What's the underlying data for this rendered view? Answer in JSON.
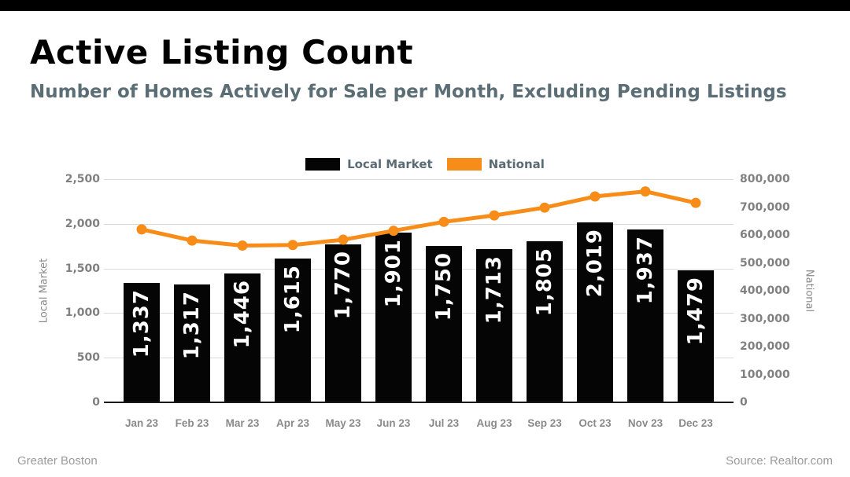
{
  "page": {
    "title": "Active Listing Count",
    "subtitle": "Number of Homes Actively for Sale per Month, Excluding Pending Listings",
    "footer_left": "Greater Boston",
    "footer_right": "Source: Realtor.com"
  },
  "colors": {
    "topbar": "#000000",
    "bar": "#050505",
    "line": "#F78C19",
    "bar_label_text": "#ffffff",
    "subtitle_text": "#5b6e76",
    "legend_text": "#5b6b74",
    "tick_text": "#808080",
    "grid": "#d9d9d9",
    "axis_line": "#1a1a1a",
    "footer_text": "#9b9b9b"
  },
  "legend": {
    "items": [
      {
        "label": "Local Market",
        "color": "#050505"
      },
      {
        "label": "National",
        "color": "#F78C19"
      }
    ]
  },
  "chart_data": {
    "type": "bar",
    "subtype": "bar-and-line-dual-axis",
    "title": "Active Listing Count",
    "subtitle": "Number of Homes Actively for Sale per Month, Excluding Pending Listings",
    "grid": true,
    "legend_position": "top-center",
    "categories": [
      "Jan 23",
      "Feb 23",
      "Mar 23",
      "Apr 23",
      "May 23",
      "Jun 23",
      "Jul 23",
      "Aug 23",
      "Sep 23",
      "Oct 23",
      "Nov 23",
      "Dec 23"
    ],
    "series": [
      {
        "name": "Local Market",
        "type": "bar",
        "axis": "left",
        "color": "#050505",
        "values": [
          1337,
          1317,
          1446,
          1615,
          1770,
          1901,
          1750,
          1713,
          1805,
          2019,
          1937,
          1479
        ],
        "labels": [
          "1,337",
          "1,317",
          "1,446",
          "1,615",
          "1,770",
          "1,901",
          "1,750",
          "1,713",
          "1,805",
          "2,019",
          "1,937",
          "1,479"
        ]
      },
      {
        "name": "National",
        "type": "line",
        "axis": "right",
        "color": "#F78C19",
        "values": [
          620000,
          580000,
          562000,
          564000,
          583000,
          615000,
          647000,
          670000,
          698000,
          738000,
          756000,
          715000
        ]
      }
    ],
    "left_axis": {
      "label": "Local Market",
      "min": 0,
      "max": 2500,
      "step": 500,
      "ticks": [
        "0",
        "500",
        "1,000",
        "1,500",
        "2,000",
        "2,500"
      ]
    },
    "right_axis": {
      "label": "National",
      "min": 0,
      "max": 800000,
      "step": 100000,
      "ticks": [
        "0",
        "100,000",
        "200,000",
        "300,000",
        "400,000",
        "500,000",
        "600,000",
        "700,000",
        "800,000"
      ]
    }
  }
}
